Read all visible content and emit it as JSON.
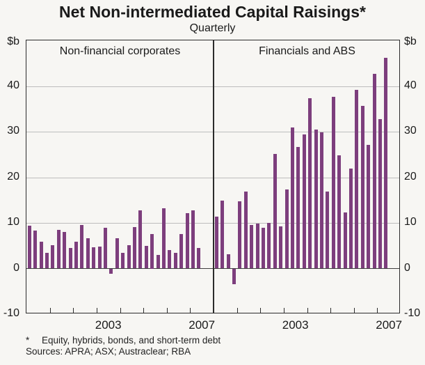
{
  "title": "Net Non-intermediated Capital Raisings*",
  "subtitle": "Quarterly",
  "y_axis": {
    "unit_label": "$b",
    "labels": [
      "$b",
      "40",
      "30",
      "20",
      "10",
      "0",
      "-10"
    ],
    "values": [
      50,
      40,
      30,
      20,
      10,
      0,
      -10
    ]
  },
  "footnote": {
    "marker": "*",
    "text": "Equity, hybrids, bonds, and short-term debt"
  },
  "sources": "Sources: APRA; ASX; Austraclear; RBA",
  "bar_color": "#7d3e7d",
  "chart_data": [
    {
      "type": "bar",
      "panel": "left",
      "title": "Non-financial corporates",
      "ylabel": "$b",
      "ylim": [
        -10,
        50
      ],
      "yticks": [
        -10,
        0,
        10,
        20,
        30,
        40
      ],
      "grid": true,
      "legend_position": "none",
      "xtick_labels_visible": [
        "2003",
        "2007"
      ],
      "x": [
        "2000Q1",
        "2000Q2",
        "2000Q3",
        "2000Q4",
        "2001Q1",
        "2001Q2",
        "2001Q3",
        "2001Q4",
        "2002Q1",
        "2002Q2",
        "2002Q3",
        "2002Q4",
        "2003Q1",
        "2003Q2",
        "2003Q3",
        "2003Q4",
        "2004Q1",
        "2004Q2",
        "2004Q3",
        "2004Q4",
        "2005Q1",
        "2005Q2",
        "2005Q3",
        "2005Q4",
        "2006Q1",
        "2006Q2",
        "2006Q3",
        "2006Q4",
        "2007Q1",
        "2007Q2"
      ],
      "values": [
        9.4,
        8.3,
        5.9,
        3.4,
        5.1,
        8.5,
        8.0,
        4.5,
        5.9,
        9.5,
        6.6,
        4.6,
        4.8,
        8.9,
        -1.1,
        6.7,
        3.5,
        5.1,
        9.1,
        12.7,
        4.9,
        7.5,
        3.0,
        13.2,
        4.1,
        3.5,
        7.6,
        12.2,
        12.7,
        4.5
      ]
    },
    {
      "type": "bar",
      "panel": "right",
      "title": "Financials and ABS",
      "ylabel": "$b",
      "ylim": [
        -10,
        50
      ],
      "yticks": [
        -10,
        0,
        10,
        20,
        30,
        40
      ],
      "grid": true,
      "legend_position": "none",
      "xtick_labels_visible": [
        "2003",
        "2007"
      ],
      "x": [
        "2000Q1",
        "2000Q2",
        "2000Q3",
        "2000Q4",
        "2001Q1",
        "2001Q2",
        "2001Q3",
        "2001Q4",
        "2002Q1",
        "2002Q2",
        "2002Q3",
        "2002Q4",
        "2003Q1",
        "2003Q2",
        "2003Q3",
        "2003Q4",
        "2004Q1",
        "2004Q2",
        "2004Q3",
        "2004Q4",
        "2005Q1",
        "2005Q2",
        "2005Q3",
        "2005Q4",
        "2006Q1",
        "2006Q2",
        "2006Q3",
        "2006Q4",
        "2007Q1",
        "2007Q2"
      ],
      "values": [
        11.4,
        14.9,
        3.2,
        -3.4,
        14.8,
        16.9,
        9.5,
        9.8,
        9.0,
        10.0,
        25.1,
        9.3,
        17.4,
        30.9,
        26.6,
        29.4,
        37.3,
        30.4,
        29.8,
        16.9,
        37.6,
        24.8,
        12.3,
        21.9,
        39.2,
        35.6,
        27.1,
        42.7,
        32.8,
        46.2
      ]
    }
  ]
}
